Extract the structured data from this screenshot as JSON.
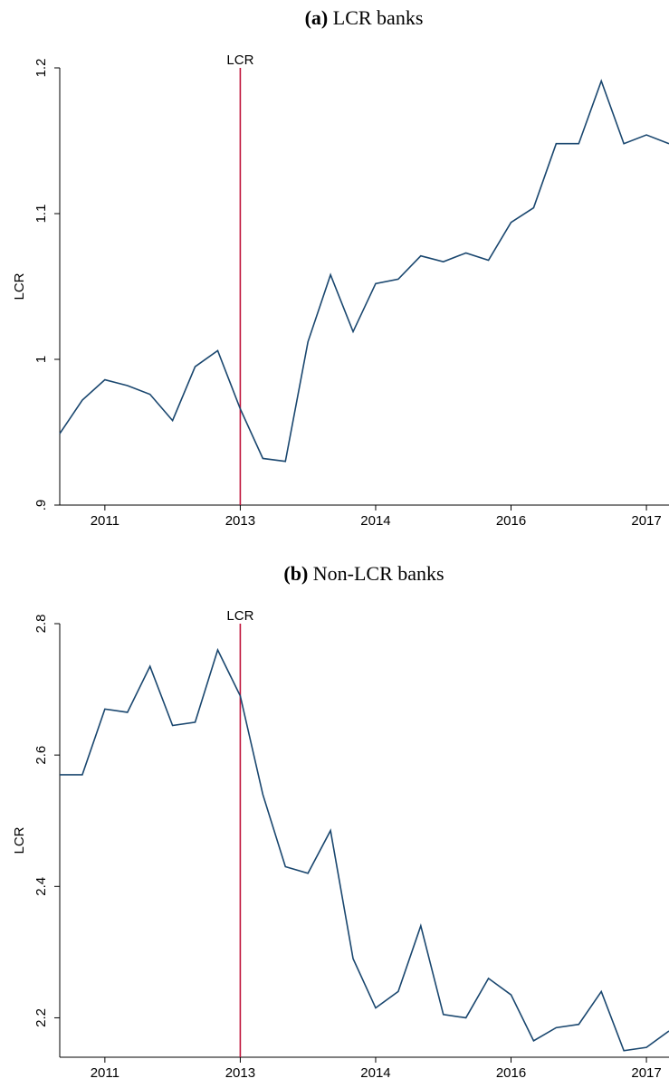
{
  "chart_data": [
    {
      "type": "line",
      "panel": "(a)",
      "title": "LCR banks",
      "ylabel": "LCR",
      "x": [
        0,
        1,
        2,
        3,
        4,
        5,
        6,
        7,
        8,
        9,
        10,
        11,
        12,
        13,
        14,
        15,
        16,
        17,
        18,
        19,
        20,
        21,
        22,
        23,
        24,
        25,
        26,
        27
      ],
      "xlim": [
        0,
        27
      ],
      "xticks": [
        {
          "value": 2,
          "label": "2011"
        },
        {
          "value": 8,
          "label": "2013"
        },
        {
          "value": 14,
          "label": "2014"
        },
        {
          "value": 20,
          "label": "2016"
        },
        {
          "value": 26,
          "label": "2017"
        }
      ],
      "ylim": [
        0.9,
        1.2
      ],
      "yticks": [
        {
          "value": 0.9,
          "label": ".9"
        },
        1,
        1.1,
        1.2
      ],
      "series": [
        {
          "name": "LCR",
          "color": "#1a476f",
          "values": [
            0.949,
            0.972,
            0.986,
            0.982,
            0.976,
            0.958,
            0.995,
            1.006,
            0.966,
            0.932,
            0.93,
            1.012,
            1.058,
            1.019,
            1.052,
            1.055,
            1.071,
            1.067,
            1.073,
            1.068,
            1.094,
            1.104,
            1.148,
            1.148,
            1.191,
            1.148,
            1.154,
            1.148
          ]
        }
      ],
      "annotation": {
        "text": "LCR",
        "x": 8,
        "color": "#c0143c"
      }
    },
    {
      "type": "line",
      "panel": "(b)",
      "title": "Non-LCR banks",
      "ylabel": "LCR",
      "x": [
        0,
        1,
        2,
        3,
        4,
        5,
        6,
        7,
        8,
        9,
        10,
        11,
        12,
        13,
        14,
        15,
        16,
        17,
        18,
        19,
        20,
        21,
        22,
        23,
        24,
        25,
        26,
        27
      ],
      "xlim": [
        0,
        27
      ],
      "xticks": [
        {
          "value": 2,
          "label": "2011"
        },
        {
          "value": 8,
          "label": "2013"
        },
        {
          "value": 14,
          "label": "2014"
        },
        {
          "value": 20,
          "label": "2016"
        },
        {
          "value": 26,
          "label": "2017"
        }
      ],
      "ylim": [
        2.14,
        2.8
      ],
      "yticks": [
        2.2,
        2.4,
        2.6,
        2.8
      ],
      "series": [
        {
          "name": "LCR",
          "color": "#1a476f",
          "values": [
            2.57,
            2.57,
            2.67,
            2.665,
            2.735,
            2.645,
            2.65,
            2.76,
            2.69,
            2.54,
            2.43,
            2.42,
            2.485,
            2.29,
            2.215,
            2.24,
            2.34,
            2.205,
            2.2,
            2.26,
            2.235,
            2.165,
            2.185,
            2.19,
            2.24,
            2.15,
            2.155,
            2.18
          ]
        }
      ],
      "annotation": {
        "text": "LCR",
        "x": 8,
        "color": "#c0143c"
      }
    }
  ]
}
